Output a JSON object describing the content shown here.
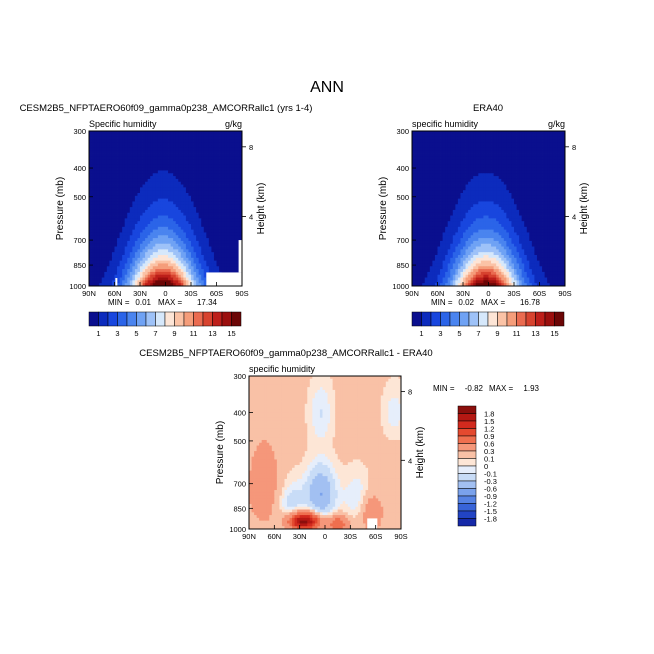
{
  "figure": {
    "title": "ANN"
  },
  "chart_data": [
    {
      "type": "heatmap",
      "panel": "model",
      "title": "CESM2B5_NFPTAERO60f09_gamma0p238_AMCORRallc1 (yrs 1-4)",
      "left_label": "Specific humidity",
      "units": "g/kg",
      "ylabel": "Pressure (mb)",
      "ylabel_right": "Height (km)",
      "x_ticks": [
        "90N",
        "60N",
        "30N",
        "0",
        "30S",
        "60S",
        "90S"
      ],
      "x_range": [
        90,
        -90
      ],
      "y_ticks": [
        "300",
        "400",
        "500",
        "700",
        "850",
        "1000"
      ],
      "y_ticks_values": [
        300,
        400,
        500,
        700,
        850,
        1000
      ],
      "y_range": [
        300,
        1000
      ],
      "right_ticks": [
        "8",
        "4"
      ],
      "right_ticks_values_km": [
        8,
        4
      ],
      "min_label": "MIN =",
      "min_value": "0.01",
      "max_label": "MAX =",
      "max_value": "17.34",
      "contour_levels": [
        1,
        2,
        3,
        4,
        5,
        6,
        7,
        8,
        9,
        10,
        11,
        12,
        13,
        14,
        15
      ],
      "profile": {
        "peak": 17.3,
        "sigma_lat_deg": 27,
        "lat_center": 3
      },
      "colorbar_labels": [
        "1",
        "3",
        "5",
        "7",
        "9",
        "11",
        "13",
        "15"
      ],
      "colorbar_colors": [
        "#0a0f8e",
        "#0c2bbd",
        "#1846de",
        "#2b64e8",
        "#4a84ef",
        "#6fa2f4",
        "#9ec2f8",
        "#d6e8fb",
        "#fde5d6",
        "#fbc3a6",
        "#f59d7a",
        "#ea6b50",
        "#d7432f",
        "#bd1f1a",
        "#9b0f0e",
        "#6c0606"
      ]
    },
    {
      "type": "heatmap",
      "panel": "obs",
      "title": "ERA40",
      "left_label": "specific humidity",
      "units": "g/kg",
      "ylabel": "Pressure (mb)",
      "ylabel_right": "Height (km)",
      "x_ticks": [
        "90N",
        "60N",
        "30N",
        "0",
        "30S",
        "60S",
        "90S"
      ],
      "x_range": [
        90,
        -90
      ],
      "y_ticks": [
        "300",
        "400",
        "500",
        "700",
        "850",
        "1000"
      ],
      "y_ticks_values": [
        300,
        400,
        500,
        700,
        850,
        1000
      ],
      "y_range": [
        300,
        1000
      ],
      "right_ticks": [
        "8",
        "4"
      ],
      "right_ticks_values_km": [
        8,
        4
      ],
      "min_label": "MIN =",
      "min_value": "0.02",
      "max_label": "MAX =",
      "max_value": "16.78",
      "contour_levels": [
        1,
        2,
        3,
        4,
        5,
        6,
        7,
        8,
        9,
        10,
        11,
        12,
        13,
        14,
        15
      ],
      "profile": {
        "peak": 16.8,
        "sigma_lat_deg": 27,
        "lat_center": 3
      },
      "colorbar_labels": [
        "1",
        "3",
        "5",
        "7",
        "9",
        "11",
        "13",
        "15"
      ],
      "colorbar_colors": [
        "#0a0f8e",
        "#0c2bbd",
        "#1846de",
        "#2b64e8",
        "#4a84ef",
        "#6fa2f4",
        "#9ec2f8",
        "#d6e8fb",
        "#fde5d6",
        "#fbc3a6",
        "#f59d7a",
        "#ea6b50",
        "#d7432f",
        "#bd1f1a",
        "#9b0f0e",
        "#6c0606"
      ]
    },
    {
      "type": "heatmap",
      "panel": "difference",
      "title": "CESM2B5_NFPTAERO60f09_gamma0p238_AMCORRallc1 - ERA40",
      "left_label": "specific humidity",
      "units": "",
      "ylabel": "Pressure (mb)",
      "ylabel_right": "Height (km)",
      "x_ticks": [
        "90N",
        "60N",
        "30N",
        "0",
        "30S",
        "60S",
        "90S"
      ],
      "x_range": [
        90,
        -90
      ],
      "y_ticks": [
        "300",
        "400",
        "500",
        "700",
        "850",
        "1000"
      ],
      "y_ticks_values": [
        300,
        400,
        500,
        700,
        850,
        1000
      ],
      "y_range": [
        300,
        1000
      ],
      "right_ticks": [
        "8",
        "4"
      ],
      "right_ticks_values_km": [
        8,
        4
      ],
      "min_label": "MIN =",
      "min_value": "-0.82",
      "max_label": "MAX =",
      "max_value": "1.93",
      "contour_levels": [
        -1.8,
        -1.5,
        -1.2,
        -0.9,
        -0.6,
        -0.3,
        -0.1,
        0,
        0.1,
        0.3,
        0.6,
        0.9,
        1.2,
        1.5,
        1.8
      ],
      "colorbar_labels": [
        "1.8",
        "1.5",
        "1.2",
        "0.9",
        "0.6",
        "0.3",
        "0.1",
        "0",
        "-0.1",
        "-0.3",
        "-0.6",
        "-0.9",
        "-1.2",
        "-1.5",
        "-1.8"
      ],
      "colorbar_colors": [
        "#8b0f0c",
        "#b51813",
        "#d22a1e",
        "#e4492f",
        "#ef6f4f",
        "#f5977a",
        "#f9c1a6",
        "#fde6d6",
        "#e6eefb",
        "#c8dcf7",
        "#a2c0f2",
        "#7aa2ec",
        "#5683e4",
        "#3864d8",
        "#2244c4",
        "#1529a8"
      ],
      "anomalies": [
        {
          "lat": 5,
          "p": 760,
          "amp": -0.75,
          "slat": 12,
          "sp": 110
        },
        {
          "lat": 25,
          "p": 940,
          "amp": 1.9,
          "slat": 13,
          "sp": 45
        },
        {
          "lat": -15,
          "p": 960,
          "amp": 0.7,
          "slat": 9,
          "sp": 45
        },
        {
          "lat": 40,
          "p": 830,
          "amp": -0.35,
          "slat": 12,
          "sp": 110
        },
        {
          "lat": -38,
          "p": 780,
          "amp": -0.25,
          "slat": 12,
          "sp": 110
        },
        {
          "lat": 5,
          "p": 400,
          "amp": -0.25,
          "slat": 10,
          "sp": 70
        },
        {
          "lat": -55,
          "p": 880,
          "amp": 0.45,
          "slat": 9,
          "sp": 90
        },
        {
          "lat": 72,
          "p": 720,
          "amp": 0.35,
          "slat": 14,
          "sp": 170
        },
        {
          "lat": -82,
          "p": 400,
          "amp": -0.2,
          "slat": 10,
          "sp": 60
        }
      ],
      "background": 0.15
    }
  ]
}
